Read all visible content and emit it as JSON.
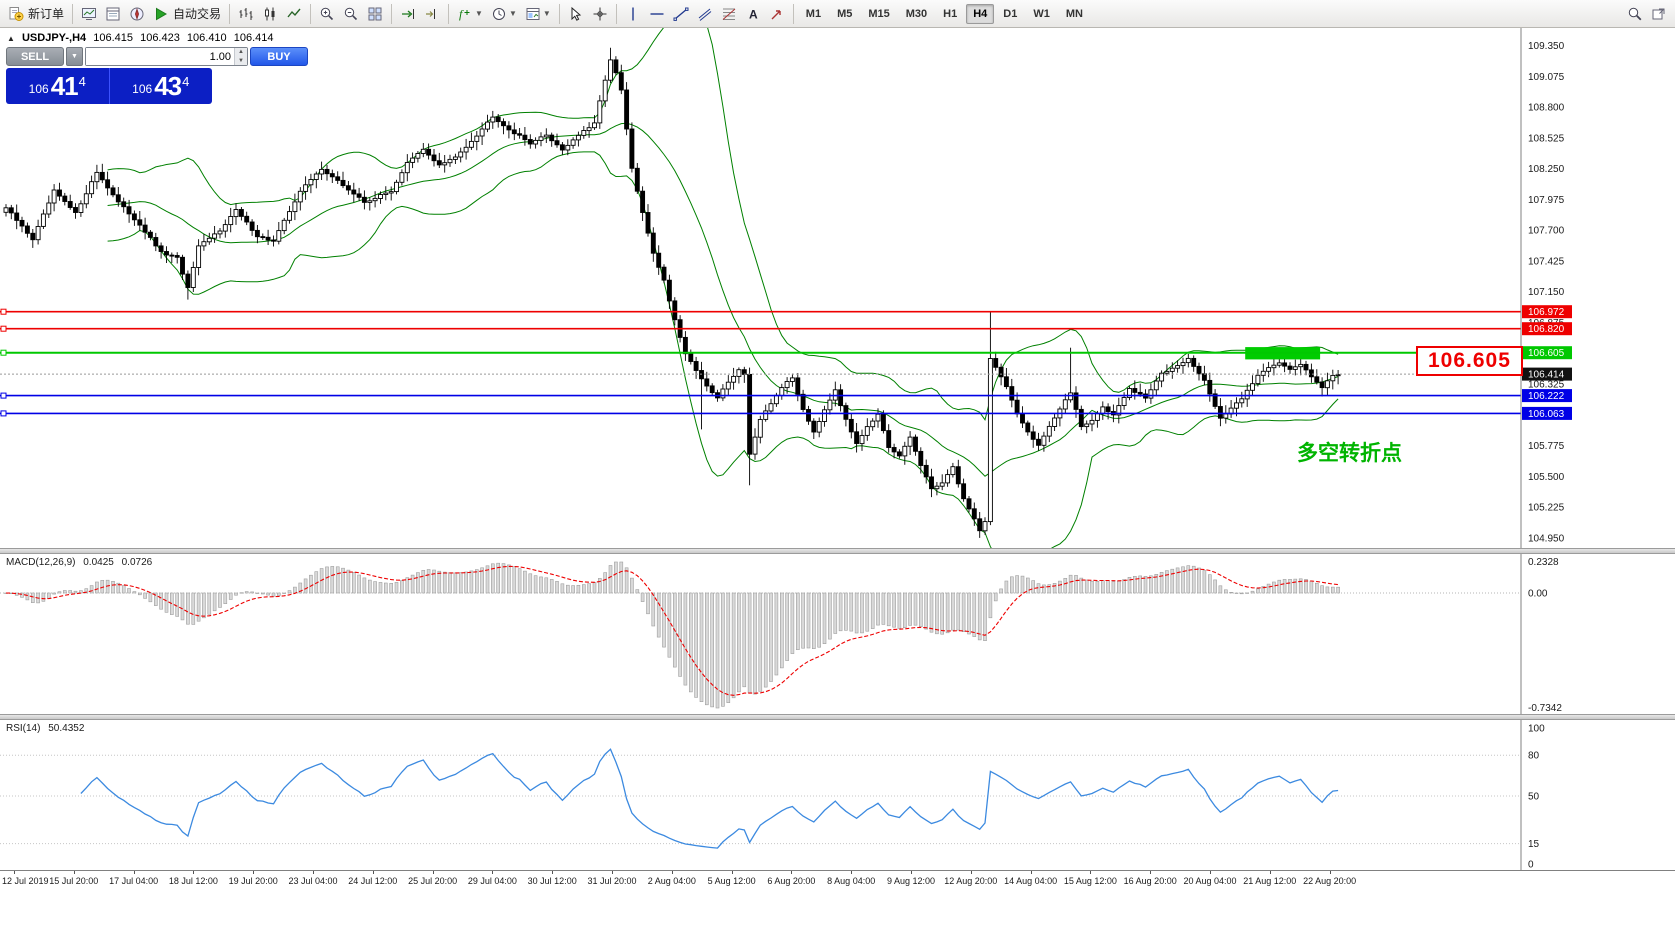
{
  "toolbar": {
    "groups": [
      {
        "name": "trade",
        "items": [
          {
            "name": "new-order",
            "icon": "new-order",
            "type": "labeled",
            "label": "新订单"
          }
        ]
      },
      {
        "name": "panels",
        "items": [
          {
            "name": "market-watch",
            "icon": "market-watch",
            "type": "icon"
          },
          {
            "name": "data-window",
            "icon": "data-window",
            "type": "icon"
          },
          {
            "name": "navigator",
            "icon": "navigator",
            "type": "icon"
          },
          {
            "name": "auto-trading",
            "icon": "play",
            "type": "labeled",
            "label": "自动交易"
          }
        ]
      },
      {
        "name": "chart-type",
        "items": [
          {
            "name": "bar-chart-mode",
            "icon": "bars",
            "type": "icon"
          },
          {
            "name": "candlestick-mode",
            "icon": "candles",
            "type": "icon"
          },
          {
            "name": "line-chart-mode",
            "icon": "line",
            "type": "icon"
          }
        ]
      },
      {
        "name": "zoom",
        "items": [
          {
            "name": "zoom-in",
            "icon": "zoom-in",
            "type": "icon"
          },
          {
            "name": "zoom-out",
            "icon": "zoom-out",
            "type": "icon"
          },
          {
            "name": "tile-windows",
            "icon": "grid",
            "type": "icon"
          }
        ]
      },
      {
        "name": "scroll",
        "items": [
          {
            "name": "auto-scroll",
            "icon": "auto-scroll",
            "type": "icon"
          },
          {
            "name": "chart-shift",
            "icon": "chart-shift",
            "type": "icon"
          }
        ]
      },
      {
        "name": "dropdowns",
        "items": [
          {
            "name": "indicators",
            "icon": "indicator",
            "type": "dropdown"
          },
          {
            "name": "periods",
            "icon": "clock",
            "type": "dropdown"
          },
          {
            "name": "templates",
            "icon": "template",
            "type": "dropdown"
          }
        ]
      },
      {
        "name": "pointer",
        "items": [
          {
            "name": "cursor",
            "icon": "cursor",
            "type": "icon"
          },
          {
            "name": "crosshair",
            "icon": "crosshair",
            "type": "icon"
          }
        ]
      },
      {
        "name": "objects",
        "items": [
          {
            "name": "vertical-line",
            "icon": "vline",
            "type": "icon"
          },
          {
            "name": "horizontal-line",
            "icon": "hline",
            "type": "icon"
          },
          {
            "name": "trendline",
            "icon": "trend",
            "type": "icon"
          },
          {
            "name": "equidistant-channel",
            "icon": "channel",
            "type": "icon"
          },
          {
            "name": "fibonacci-retracement",
            "icon": "fibo",
            "type": "icon"
          },
          {
            "name": "text-tool",
            "icon": "textA",
            "type": "icon"
          },
          {
            "name": "arrows-tool",
            "icon": "arrow",
            "type": "icon"
          }
        ]
      }
    ],
    "timeframes": [
      {
        "label": "M1"
      },
      {
        "label": "M5"
      },
      {
        "label": "M15"
      },
      {
        "label": "M30"
      },
      {
        "label": "H1"
      },
      {
        "label": "H4",
        "active": true
      },
      {
        "label": "D1"
      },
      {
        "label": "W1"
      },
      {
        "label": "MN"
      }
    ],
    "right": [
      {
        "name": "search",
        "icon": "search"
      },
      {
        "name": "open-in-new-window",
        "icon": "popup"
      }
    ]
  },
  "chart": {
    "collapse_arrow": "▲",
    "symbol": "USDJPY-,H4",
    "open": "106.415",
    "high": "106.423",
    "low": "106.410",
    "bid": "106.414"
  },
  "one_click": {
    "sell_label": "SELL",
    "buy_label": "BUY",
    "volume": "1.00",
    "sell_price": {
      "prefix": "106",
      "big": "41",
      "sup": "4"
    },
    "buy_price": {
      "prefix": "106",
      "big": "43",
      "sup": "4"
    }
  },
  "levels": [
    {
      "price": 106.972,
      "color": "#ee0000",
      "label": "106.972",
      "width": 1.6
    },
    {
      "price": 106.82,
      "color": "#ee0000",
      "label": "106.820",
      "width": 1.6
    },
    {
      "price": 106.605,
      "color": "#00c800",
      "label": "106.605",
      "width": 2
    },
    {
      "price": 106.222,
      "color": "#0000e6",
      "label": "106.222",
      "width": 1.6
    },
    {
      "price": 106.063,
      "color": "#0000e6",
      "label": "106.063",
      "width": 1.6
    }
  ],
  "price_tag": {
    "text": "106.605",
    "color": "#ee0000"
  },
  "annotation": {
    "text": "多空转折点",
    "color": "#00b400"
  },
  "indicators": {
    "macd": {
      "title": "MACD(12,26,9)",
      "value1": "0.0425",
      "value2": "0.0726",
      "scale_top": "0.2328",
      "scale_zero": "0.00",
      "scale_bottom": "-0.7342"
    },
    "rsi": {
      "title": "RSI(14)",
      "value": "50.4352",
      "scale": [
        "100",
        "80",
        "50",
        "15",
        "0"
      ],
      "levels": [
        80,
        50,
        15
      ]
    }
  },
  "chart_data": {
    "type": "candlestick",
    "symbol": "USDJPY",
    "timeframe": "H4",
    "bars": 250,
    "ylim": [
      104.95,
      109.51
    ],
    "price_ticks": [
      "109.350",
      "109.075",
      "108.800",
      "108.525",
      "108.250",
      "107.975",
      "107.700",
      "107.425",
      "107.150",
      "106.875",
      "106.600",
      "106.325",
      "106.050",
      "105.775",
      "105.500",
      "105.225",
      "104.950"
    ],
    "time_labels": [
      "12 Jul 2019",
      "15 Jul 20:00",
      "17 Jul 04:00",
      "18 Jul 12:00",
      "19 Jul 20:00",
      "23 Jul 04:00",
      "24 Jul 12:00",
      "25 Jul 20:00",
      "29 Jul 04:00",
      "30 Jul 12:00",
      "31 Jul 20:00",
      "2 Aug 04:00",
      "5 Aug 12:00",
      "6 Aug 20:00",
      "8 Aug 04:00",
      "9 Aug 12:00",
      "12 Aug 20:00",
      "14 Aug 04:00",
      "15 Aug 12:00",
      "16 Aug 20:00",
      "20 Aug 04:00",
      "21 Aug 12:00",
      "22 Aug 20:00"
    ],
    "close_keypoints": [
      [
        0,
        107.9
      ],
      [
        5,
        107.62
      ],
      [
        9,
        108.05
      ],
      [
        13,
        107.85
      ],
      [
        17,
        108.22
      ],
      [
        21,
        107.95
      ],
      [
        25,
        107.75
      ],
      [
        29,
        107.5
      ],
      [
        32,
        107.45
      ],
      [
        34,
        107.18
      ],
      [
        36,
        107.55
      ],
      [
        40,
        107.7
      ],
      [
        43,
        107.88
      ],
      [
        47,
        107.65
      ],
      [
        50,
        107.6
      ],
      [
        55,
        108.05
      ],
      [
        59,
        108.25
      ],
      [
        63,
        108.1
      ],
      [
        67,
        107.95
      ],
      [
        72,
        108.05
      ],
      [
        75,
        108.3
      ],
      [
        78,
        108.42
      ],
      [
        81,
        108.28
      ],
      [
        84,
        108.35
      ],
      [
        88,
        108.55
      ],
      [
        91,
        108.72
      ],
      [
        94,
        108.6
      ],
      [
        98,
        108.48
      ],
      [
        101,
        108.55
      ],
      [
        104,
        108.42
      ],
      [
        107,
        108.55
      ],
      [
        110,
        108.65
      ],
      [
        112,
        109.05
      ],
      [
        113,
        109.22
      ],
      [
        114,
        109.1
      ],
      [
        115,
        108.95
      ],
      [
        117,
        108.25
      ],
      [
        119,
        107.85
      ],
      [
        121,
        107.5
      ],
      [
        123,
        107.25
      ],
      [
        125,
        106.9
      ],
      [
        127,
        106.6
      ],
      [
        129,
        106.45
      ],
      [
        131,
        106.3
      ],
      [
        133,
        106.2
      ],
      [
        135,
        106.35
      ],
      [
        137,
        106.45
      ],
      [
        138,
        106.42
      ],
      [
        139,
        105.7
      ],
      [
        141,
        106.0
      ],
      [
        143,
        106.15
      ],
      [
        145,
        106.3
      ],
      [
        147,
        106.38
      ],
      [
        149,
        106.1
      ],
      [
        151,
        105.9
      ],
      [
        153,
        106.1
      ],
      [
        155,
        106.28
      ],
      [
        157,
        106.0
      ],
      [
        159,
        105.8
      ],
      [
        161,
        105.95
      ],
      [
        163,
        106.05
      ],
      [
        165,
        105.75
      ],
      [
        167,
        105.68
      ],
      [
        169,
        105.85
      ],
      [
        171,
        105.6
      ],
      [
        173,
        105.38
      ],
      [
        175,
        105.45
      ],
      [
        177,
        105.58
      ],
      [
        179,
        105.3
      ],
      [
        181,
        105.12
      ],
      [
        182,
        105.02
      ],
      [
        183,
        105.1
      ],
      [
        184,
        106.55
      ],
      [
        185,
        106.48
      ],
      [
        187,
        106.3
      ],
      [
        189,
        106.05
      ],
      [
        191,
        105.9
      ],
      [
        193,
        105.78
      ],
      [
        195,
        105.95
      ],
      [
        197,
        106.1
      ],
      [
        199,
        106.25
      ],
      [
        201,
        105.95
      ],
      [
        203,
        106.0
      ],
      [
        205,
        106.12
      ],
      [
        207,
        106.05
      ],
      [
        210,
        106.28
      ],
      [
        213,
        106.2
      ],
      [
        216,
        106.42
      ],
      [
        219,
        106.5
      ],
      [
        221,
        106.55
      ],
      [
        224,
        106.35
      ],
      [
        227,
        106.02
      ],
      [
        229,
        106.1
      ],
      [
        231,
        106.2
      ],
      [
        234,
        106.4
      ],
      [
        236,
        106.48
      ],
      [
        238,
        106.52
      ],
      [
        240,
        106.45
      ],
      [
        242,
        106.5
      ],
      [
        244,
        106.4
      ],
      [
        246,
        106.3
      ],
      [
        248,
        106.4
      ],
      [
        249,
        106.414
      ]
    ],
    "wick_overrides": [
      {
        "i": 34,
        "l": 107.08
      },
      {
        "i": 113,
        "h": 109.33
      },
      {
        "i": 130,
        "l": 105.92
      },
      {
        "i": 139,
        "l": 105.42
      },
      {
        "i": 182,
        "l": 104.95
      },
      {
        "i": 184,
        "h": 106.97
      },
      {
        "i": 199,
        "h": 106.65
      }
    ],
    "green_box": {
      "i1": 232,
      "i2": 246,
      "p_top": 106.655,
      "p_bottom": 106.545,
      "color": "#00cc00"
    },
    "bollinger": {
      "period": 20,
      "deviation": 2,
      "color": "#008000"
    },
    "macd_panel": {
      "histogram_color": "#d9d9d9",
      "signal_color": "#ee0000"
    },
    "rsi_panel": {
      "line_color": "#3c8ae0"
    },
    "current_bid": 106.414
  }
}
